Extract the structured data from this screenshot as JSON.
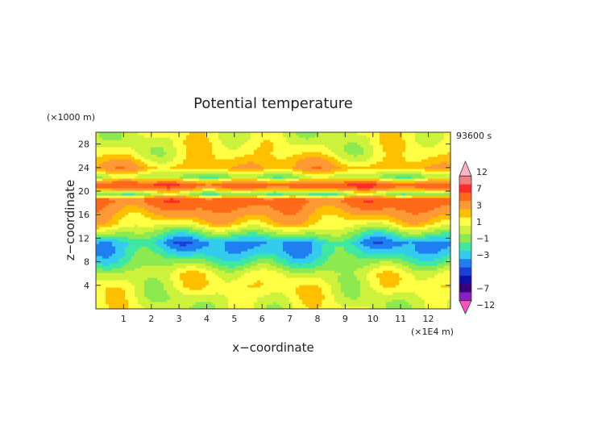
{
  "chart_data": {
    "type": "heatmap",
    "title": "Potential temperature",
    "xlabel": "x−coordinate",
    "ylabel": "z−coordinate",
    "x_unit": "(×1E4 m)",
    "y_unit": "(×1000 m)",
    "time_label": "93600 s",
    "xlim": [
      0,
      12.8
    ],
    "ylim": [
      0,
      30
    ],
    "x_ticks": [
      "1",
      "2",
      "3",
      "4",
      "5",
      "6",
      "7",
      "8",
      "9",
      "10",
      "11",
      "12"
    ],
    "y_ticks": [
      "4",
      "8",
      "12",
      "16",
      "20",
      "24",
      "28"
    ],
    "colorbar": {
      "tick_labels": [
        "12",
        "7",
        "3",
        "1",
        "−1",
        "−3",
        "−7",
        "−12"
      ],
      "colors": [
        "#ffb3c6",
        "#f08080",
        "#ff2a2a",
        "#ff6a1a",
        "#ff9933",
        "#ffc000",
        "#ffff44",
        "#cdf23c",
        "#8cea50",
        "#3ee8a0",
        "#33ccee",
        "#1f7ff0",
        "#1a3fd8",
        "#1010a8",
        "#3a007a",
        "#8a1fc8",
        "#ff4fc0"
      ],
      "value_levels": [
        12,
        9.5,
        7,
        5,
        3,
        2,
        1,
        0,
        -1,
        -2,
        -3,
        -4,
        -5,
        -6,
        -7,
        -9.5,
        -12
      ]
    },
    "bands": [
      {
        "z_center": 1.5,
        "value": 0.3
      },
      {
        "z_center": 3.8,
        "value": 1.0
      },
      {
        "z_center": 6.0,
        "value": 0.5
      },
      {
        "z_center": 8.0,
        "value": -1.5
      },
      {
        "z_center": 9.8,
        "value": -3.0
      },
      {
        "z_center": 11.3,
        "value": -3.5
      },
      {
        "z_center": 12.6,
        "value": -1.5
      },
      {
        "z_center": 14.5,
        "value": 1.5
      },
      {
        "z_center": 16.8,
        "value": 3.5
      },
      {
        "z_center": 18.6,
        "value": 5.0
      },
      {
        "z_center": 19.6,
        "value": -1.5
      },
      {
        "z_center": 21.0,
        "value": 6.0
      },
      {
        "z_center": 22.5,
        "value": -1.0
      },
      {
        "z_center": 24.0,
        "value": 2.5
      },
      {
        "z_center": 26.5,
        "value": 1.0
      },
      {
        "z_center": 29.0,
        "value": 0.5
      }
    ]
  }
}
